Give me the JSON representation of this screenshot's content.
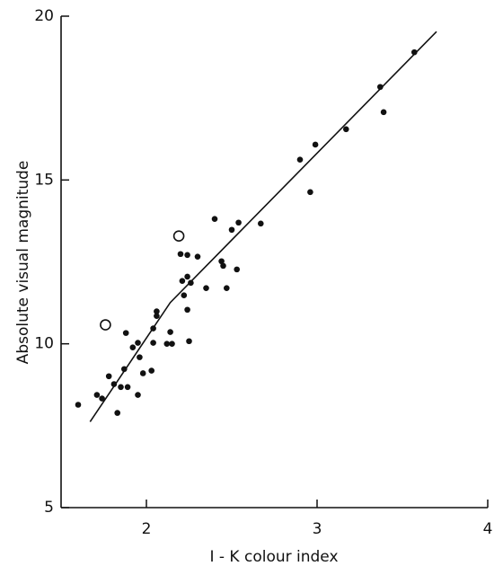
{
  "chart_data": {
    "type": "scatter",
    "xlabel": "I - K colour index",
    "ylabel": "Absolute visual magnitude",
    "xlim": [
      1.5,
      4
    ],
    "ylim": [
      5,
      20
    ],
    "xticks": [
      2,
      3,
      4
    ],
    "yticks": [
      5,
      10,
      15,
      20
    ],
    "series": [
      {
        "marker": "filled",
        "color": "#111111",
        "x": [
          1.6,
          1.71,
          1.74,
          1.78,
          1.81,
          1.83,
          1.85,
          1.87,
          1.88,
          1.89,
          1.92,
          1.95,
          1.95,
          1.96,
          1.98,
          2.03,
          2.04,
          2.04,
          2.06,
          2.06,
          2.12,
          2.14,
          2.15,
          2.2,
          2.21,
          2.22,
          2.24,
          2.24,
          2.24,
          2.25,
          2.26,
          2.3,
          2.35,
          2.4,
          2.44,
          2.45,
          2.47,
          2.5,
          2.53,
          2.54,
          2.67,
          2.9,
          2.96,
          2.99,
          3.17,
          3.37,
          3.39,
          3.57
        ],
        "y": [
          8.14,
          8.44,
          8.33,
          9.01,
          8.77,
          7.89,
          8.68,
          9.23,
          10.33,
          8.68,
          9.89,
          10.03,
          8.44,
          9.59,
          9.1,
          9.18,
          10.03,
          10.47,
          10.85,
          10.99,
          10.0,
          10.36,
          10.0,
          12.74,
          11.92,
          11.48,
          12.71,
          12.05,
          11.04,
          10.08,
          11.86,
          12.66,
          11.7,
          13.81,
          12.52,
          12.38,
          11.7,
          13.48,
          12.27,
          13.7,
          13.67,
          15.62,
          14.63,
          16.08,
          16.55,
          17.84,
          17.07,
          18.9
        ]
      },
      {
        "marker": "open",
        "color": "#111111",
        "x": [
          1.76,
          2.19
        ],
        "y": [
          10.58,
          13.29
        ]
      }
    ],
    "fit_line": {
      "color": "#111111",
      "x": [
        1.67,
        2.14,
        3.7
      ],
      "y": [
        7.62,
        11.26,
        19.53
      ]
    }
  }
}
